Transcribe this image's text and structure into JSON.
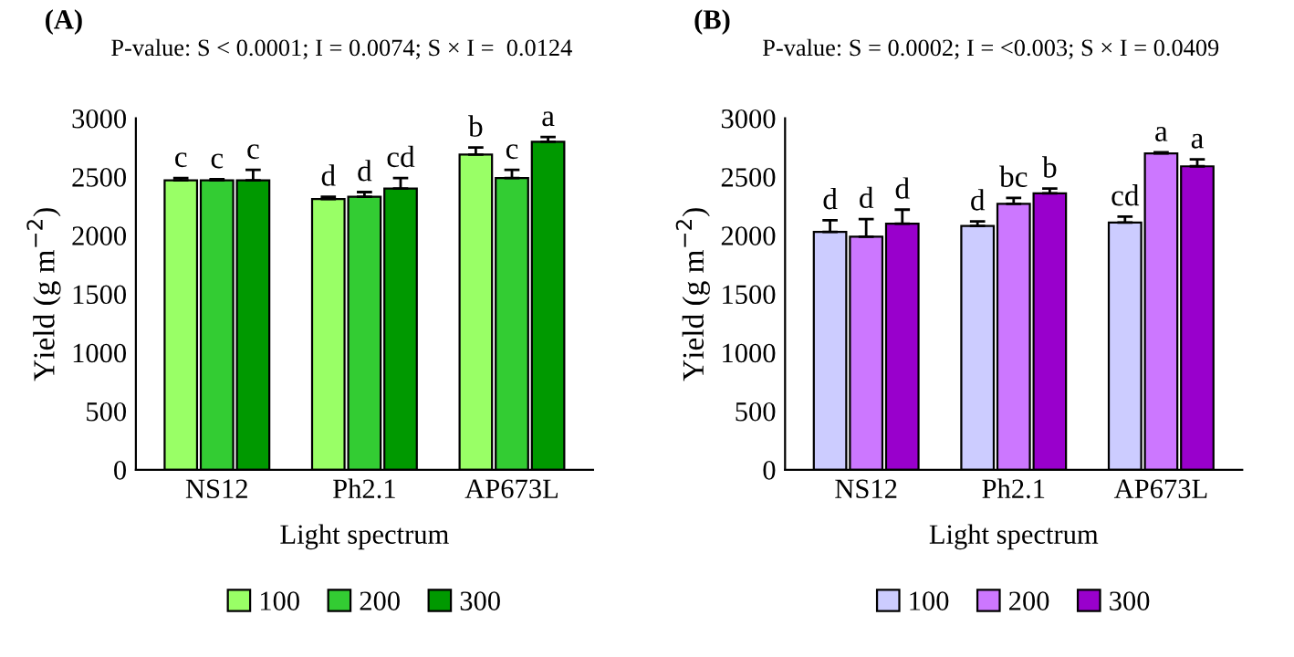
{
  "chart_data": [
    {
      "type": "bar",
      "title": "(A)",
      "subtitle": "P-value: S < 0.0001; I = 0.0074; S × I =  0.0124",
      "xlabel": "Light spectrum",
      "ylabel": "Yield (g m$^{−2}$)",
      "categories": [
        "NS12",
        "Ph2.1",
        "AP673L"
      ],
      "ylim": [
        0,
        3000
      ],
      "yticks": [
        0,
        500,
        1000,
        1500,
        2000,
        2500,
        3000
      ],
      "grid": false,
      "legend": "bottom",
      "series": [
        {
          "name": "100",
          "color": "#99ff66",
          "values": [
            2470,
            2310,
            2690
          ],
          "errors": [
            20,
            20,
            60
          ],
          "value_labels": [
            "c",
            "d",
            "b"
          ]
        },
        {
          "name": "200",
          "color": "#33cc33",
          "values": [
            2470,
            2330,
            2490
          ],
          "errors": [
            10,
            40,
            70
          ],
          "value_labels": [
            "c",
            "d",
            "c"
          ]
        },
        {
          "name": "300",
          "color": "#009900",
          "values": [
            2470,
            2400,
            2800
          ],
          "errors": [
            90,
            90,
            40
          ],
          "value_labels": [
            "c",
            "cd",
            "a"
          ]
        }
      ]
    },
    {
      "type": "bar",
      "title": "(B)",
      "subtitle": "P-value: S = 0.0002; I = <0.003; S × I = 0.0409",
      "xlabel": "Light spectrum",
      "ylabel": "Yield (g m$^{−2}$)",
      "categories": [
        "NS12",
        "Ph2.1",
        "AP673L"
      ],
      "ylim": [
        0,
        3000
      ],
      "yticks": [
        0,
        500,
        1000,
        1500,
        2000,
        2500,
        3000
      ],
      "grid": false,
      "legend": "bottom",
      "series": [
        {
          "name": "100",
          "color": "#ccccff",
          "values": [
            2030,
            2080,
            2110
          ],
          "errors": [
            100,
            40,
            50
          ],
          "value_labels": [
            "d",
            "d",
            "cd"
          ]
        },
        {
          "name": "200",
          "color": "#cc77ff",
          "values": [
            1990,
            2270,
            2700
          ],
          "errors": [
            150,
            50,
            10
          ],
          "value_labels": [
            "d",
            "bc",
            "a"
          ]
        },
        {
          "name": "300",
          "color": "#9900cc",
          "values": [
            2100,
            2360,
            2590
          ],
          "errors": [
            120,
            40,
            60
          ],
          "value_labels": [
            "d",
            "b",
            "a"
          ]
        }
      ]
    }
  ]
}
